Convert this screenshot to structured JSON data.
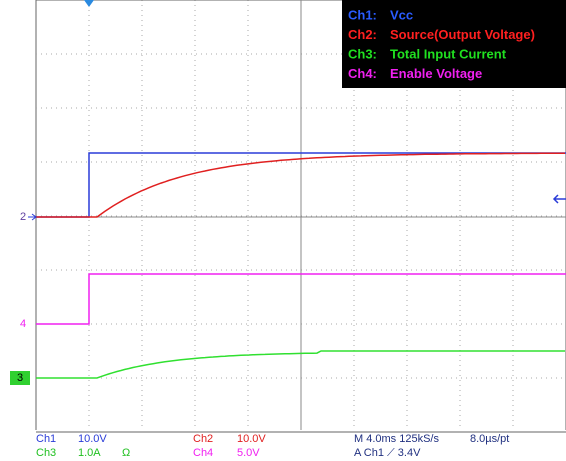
{
  "legend": [
    {
      "channel": "Ch1:",
      "label": "Vcc"
    },
    {
      "channel": "Ch2:",
      "label": "Source(Output Voltage)"
    },
    {
      "channel": "Ch3:",
      "label": "Total Input Current"
    },
    {
      "channel": "Ch4:",
      "label": "Enable Voltage"
    }
  ],
  "markers": [
    "2",
    "4",
    "3"
  ],
  "status": [
    [
      "Ch1",
      "10.0V",
      "Ch2",
      "10.0V",
      "M 4.0ms 125kS/s",
      "8.0µs/pt"
    ],
    [
      "Ch3",
      "1.0A",
      "Ω",
      "Ch4",
      "5.0V",
      "A  Ch1  ⟋  3.4V"
    ]
  ]
}
